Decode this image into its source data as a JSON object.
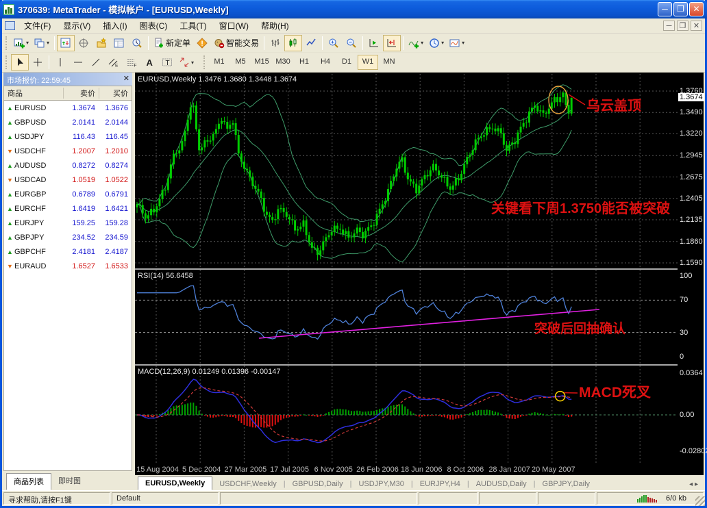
{
  "window": {
    "title": "370639: MetaTrader - 模拟帐户 - [EURUSD,Weekly]"
  },
  "menu": {
    "items": [
      "文件(F)",
      "显示(V)",
      "插入(I)",
      "图表(C)",
      "工具(T)",
      "窗口(W)",
      "帮助(H)"
    ]
  },
  "toolbar": {
    "new_order_label": "新定单",
    "expert_label": "智能交易",
    "timeframes": [
      "M1",
      "M5",
      "M15",
      "M30",
      "H1",
      "H4",
      "D1",
      "W1",
      "MN"
    ],
    "active_timeframe": "W1"
  },
  "market_watch": {
    "title": "市场报价: 22:59:45",
    "columns": [
      "商品",
      "卖价",
      "买价"
    ],
    "rows": [
      {
        "symbol": "EURUSD",
        "bid": "1.3674",
        "ask": "1.3676",
        "dir": "up"
      },
      {
        "symbol": "GBPUSD",
        "bid": "2.0141",
        "ask": "2.0144",
        "dir": "up"
      },
      {
        "symbol": "USDJPY",
        "bid": "116.43",
        "ask": "116.45",
        "dir": "up"
      },
      {
        "symbol": "USDCHF",
        "bid": "1.2007",
        "ask": "1.2010",
        "dir": "down"
      },
      {
        "symbol": "AUDUSD",
        "bid": "0.8272",
        "ask": "0.8274",
        "dir": "up"
      },
      {
        "symbol": "USDCAD",
        "bid": "1.0519",
        "ask": "1.0522",
        "dir": "down"
      },
      {
        "symbol": "EURGBP",
        "bid": "0.6789",
        "ask": "0.6791",
        "dir": "up"
      },
      {
        "symbol": "EURCHF",
        "bid": "1.6419",
        "ask": "1.6421",
        "dir": "up"
      },
      {
        "symbol": "EURJPY",
        "bid": "159.25",
        "ask": "159.28",
        "dir": "up"
      },
      {
        "symbol": "GBPJPY",
        "bid": "234.52",
        "ask": "234.59",
        "dir": "up"
      },
      {
        "symbol": "GBPCHF",
        "bid": "2.4181",
        "ask": "2.4187",
        "dir": "up"
      },
      {
        "symbol": "EURAUD",
        "bid": "1.6527",
        "ask": "1.6533",
        "dir": "down"
      }
    ]
  },
  "bottom_tabs": [
    {
      "label": "商品列表"
    },
    {
      "label": "即时图"
    }
  ],
  "chart": {
    "header": "EURUSD,Weekly  1.3476 1.3680 1.3448 1.3674"
  },
  "chart_tabs": {
    "items": [
      "EURUSD,Weekly",
      "USDCHF,Weekly",
      "GBPUSD,Daily",
      "USDJPY,M30",
      "EURJPY,H4",
      "AUDUSD,Daily",
      "GBPJPY,Daily"
    ],
    "active": 0
  },
  "status": {
    "help": "寻求帮助,请按F1键",
    "template": "Default",
    "traffic": "6/0 kb"
  },
  "chart_data": {
    "type": "candlestick",
    "symbol": "EURUSD",
    "timeframe": "Weekly",
    "last_candle": {
      "open": 1.3476,
      "high": 1.368,
      "low": 1.3448,
      "close": 1.3674
    },
    "current_price": "1.3674",
    "price_ticks": [
      "1.3760",
      "1.3490",
      "1.3220",
      "1.2945",
      "1.2675",
      "1.2405",
      "1.2135",
      "1.1860",
      "1.1590"
    ],
    "price_range": [
      1.159,
      1.376
    ],
    "x_dates": [
      "15 Aug 2004",
      "5 Dec 2004",
      "27 Mar 2005",
      "17 Jul 2005",
      "6 Nov 2005",
      "26 Feb 2006",
      "18 Jun 2006",
      "8 Oct 2006",
      "28 Jan 2007",
      "20 May 2007"
    ],
    "candle_count": 155,
    "close_anchors": [
      [
        0,
        1.231
      ],
      [
        3,
        1.218
      ],
      [
        6,
        1.228
      ],
      [
        10,
        1.253
      ],
      [
        13,
        1.292
      ],
      [
        16,
        1.309
      ],
      [
        19,
        1.361
      ],
      [
        20,
        1.355
      ],
      [
        22,
        1.304
      ],
      [
        25,
        1.31
      ],
      [
        28,
        1.324
      ],
      [
        30,
        1.344
      ],
      [
        32,
        1.329
      ],
      [
        34,
        1.342
      ],
      [
        36,
        1.295
      ],
      [
        40,
        1.263
      ],
      [
        43,
        1.248
      ],
      [
        46,
        1.222
      ],
      [
        48,
        1.212
      ],
      [
        50,
        1.226
      ],
      [
        53,
        1.218
      ],
      [
        56,
        1.202
      ],
      [
        59,
        1.21
      ],
      [
        62,
        1.178
      ],
      [
        64,
        1.17
      ],
      [
        66,
        1.181
      ],
      [
        69,
        1.201
      ],
      [
        72,
        1.205
      ],
      [
        75,
        1.192
      ],
      [
        78,
        1.198
      ],
      [
        80,
        1.192
      ],
      [
        83,
        1.206
      ],
      [
        86,
        1.228
      ],
      [
        89,
        1.25
      ],
      [
        92,
        1.278
      ],
      [
        94,
        1.287
      ],
      [
        96,
        1.265
      ],
      [
        99,
        1.254
      ],
      [
        102,
        1.269
      ],
      [
        105,
        1.278
      ],
      [
        108,
        1.266
      ],
      [
        111,
        1.255
      ],
      [
        114,
        1.268
      ],
      [
        117,
        1.289
      ],
      [
        120,
        1.309
      ],
      [
        123,
        1.324
      ],
      [
        126,
        1.333
      ],
      [
        129,
        1.323
      ],
      [
        131,
        1.299
      ],
      [
        134,
        1.312
      ],
      [
        136,
        1.329
      ],
      [
        139,
        1.35
      ],
      [
        141,
        1.36
      ],
      [
        144,
        1.344
      ],
      [
        146,
        1.353
      ],
      [
        148,
        1.363
      ],
      [
        150,
        1.369
      ],
      [
        151,
        1.374
      ],
      [
        152,
        1.358
      ],
      [
        153,
        1.3476
      ],
      [
        154,
        1.3674
      ]
    ],
    "indicators": {
      "bollinger": {
        "period": 20,
        "deviation": 2
      },
      "rsi": {
        "label": "RSI(14) 56.6458",
        "value": 56.6458,
        "ticks": [
          "100",
          "70",
          "30",
          "0"
        ],
        "levels": [
          70,
          30
        ]
      },
      "macd": {
        "label": "MACD(12,26,9) 0.01249 0.01396 -0.00147",
        "values": [
          0.01249,
          0.01396,
          -0.00147
        ],
        "ticks": [
          "0.0364",
          "0.00",
          "-0.02802"
        ]
      }
    },
    "annotations": {
      "dark_cloud": {
        "text": "乌云盖顶",
        "color": "#DD1111"
      },
      "key_level": {
        "text": "关键看下周1.3750能否被突破",
        "color": "#DD1111"
      },
      "rsi_note": {
        "text": "突破后回抽确认",
        "color": "#DD1111"
      },
      "macd_note": {
        "text": "MACD死叉",
        "color": "#DD1111"
      }
    },
    "colors": {
      "background": "#000000",
      "grid": "#565656",
      "candle": "#00CC00",
      "band": "#3E9B69",
      "rsi_line": "#4D7FD6",
      "trend_line": "#E020E0",
      "macd_line": "#2E2EDC",
      "signal_line": "#D23A3A",
      "hist_up": "#00A000",
      "hist_down": "#DD1111",
      "highlight_circle": "#FFD400"
    }
  }
}
